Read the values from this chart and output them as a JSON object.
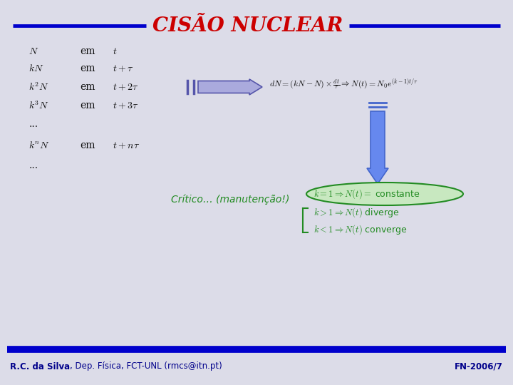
{
  "title": "CISÃO NUCLEAR",
  "title_color": "#cc0000",
  "bg_color": "#dcdce8",
  "line_color": "#0000cc",
  "footer_left_bold": "R.C. da Silva",
  "footer_left_rest": ", Dep. Física, FCT-UNL (rmcs@itn.pt)",
  "footer_right": "FN-2006/7",
  "footer_color": "#00008b",
  "critico_text": "Crítico… (manutenção!)",
  "critico_color": "#228b22",
  "arrow_color": "#5555aa",
  "arrow_fill": "#aaaadd",
  "down_arrow_color": "#4466cc",
  "down_arrow_fill": "#6688ee",
  "green_color": "#228b22",
  "text_color": "#111111",
  "formula_text": "$dN = (kN - N)\\times\\frac{dt}{\\tau}\\Rightarrow N(t)=N_0 e^{(k-1)t/\\tau}$",
  "cond1": "$k=1\\Rightarrow N(t)=$ constante",
  "cond2": "$k>1\\Rightarrow N(t)$ diverge",
  "cond3": "$k<1\\Rightarrow N(t)$ converge"
}
